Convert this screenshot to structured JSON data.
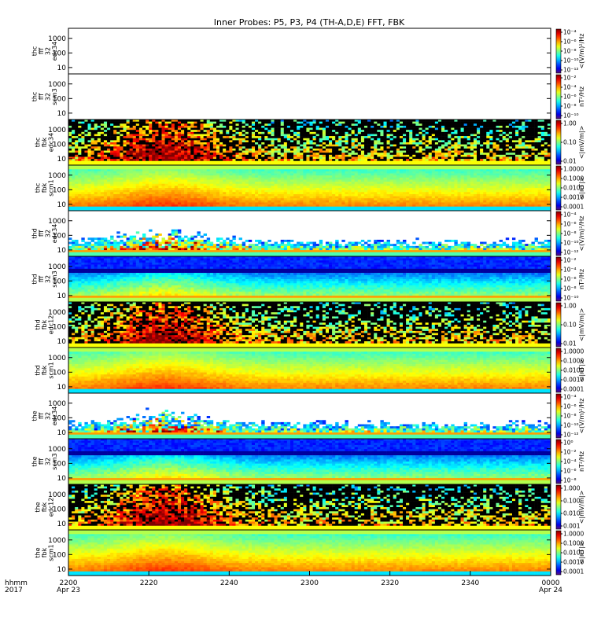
{
  "title": "Inner Probes: P5, P3, P4 (TH-A,D,E) FFT, FBK",
  "x_axis": {
    "corner_labels": [
      "hhmm",
      "2017"
    ],
    "ticks": [
      {
        "time": "2200",
        "date": "Apr 23"
      },
      {
        "time": "2220",
        "date": ""
      },
      {
        "time": "2240",
        "date": ""
      },
      {
        "time": "2300",
        "date": ""
      },
      {
        "time": "2320",
        "date": ""
      },
      {
        "time": "2340",
        "date": ""
      },
      {
        "time": "0000",
        "date": "Apr 24"
      }
    ]
  },
  "chart_data": {
    "type": "heatmap",
    "x_range": [
      "2017-04-23 22:00",
      "2017-04-24 00:00"
    ],
    "y_scale": "log",
    "y_ticks": [
      "1000",
      "100",
      "10"
    ],
    "panels": [
      {
        "label": [
          "thc",
          "fff",
          "32",
          "edc34"
        ],
        "colorbar_unit": "<(V/m)²/Hz",
        "colorbar_ticks": [
          "10⁻⁴",
          "10⁻⁶",
          "10⁻⁸",
          "10⁻¹⁰",
          "10⁻¹²"
        ],
        "pattern": "blank"
      },
      {
        "label": [
          "thc",
          "fff",
          "32",
          "scm3"
        ],
        "colorbar_unit": "nT²/Hz",
        "colorbar_ticks": [
          "10⁻²",
          "10⁻⁴",
          "10⁻⁶",
          "10⁻⁸",
          "10⁻¹⁰"
        ],
        "pattern": "blank"
      },
      {
        "label": [
          "thc",
          "fbk",
          "edc34"
        ],
        "colorbar_unit": "<|mV/m|>",
        "colorbar_ticks": [
          "1.00",
          "0.10",
          "0.01"
        ],
        "pattern": "fbk_e"
      },
      {
        "label": [
          "thc",
          "fbk",
          "scm1"
        ],
        "colorbar_unit": "<|nT|>",
        "colorbar_ticks": [
          "1.0000",
          "0.1000",
          "0.0100",
          "0.0010",
          "0.0001"
        ],
        "pattern": "fbk_b"
      },
      {
        "label": [
          "thd",
          "fff",
          "32",
          "edc34"
        ],
        "colorbar_unit": "<(V/m)²/Hz",
        "colorbar_ticks": [
          "10⁻⁴",
          "10⁻⁶",
          "10⁻⁸",
          "10⁻¹⁰",
          "10⁻¹²"
        ],
        "pattern": "fff_e"
      },
      {
        "label": [
          "thd",
          "fff",
          "32",
          "scm3"
        ],
        "colorbar_unit": "nT²/Hz",
        "colorbar_ticks": [
          "10⁻²",
          "10⁻⁴",
          "10⁻⁶",
          "10⁻⁸",
          "10⁻¹⁰"
        ],
        "pattern": "fff_b"
      },
      {
        "label": [
          "thd",
          "fbk",
          "edc12"
        ],
        "colorbar_unit": "<|mV/m|>",
        "colorbar_ticks": [
          "1.00",
          "0.10",
          "0.01"
        ],
        "pattern": "fbk_e"
      },
      {
        "label": [
          "thd",
          "fbk",
          "scm1"
        ],
        "colorbar_unit": "<|nT|>",
        "colorbar_ticks": [
          "1.0000",
          "0.1000",
          "0.0100",
          "0.0010",
          "0.0001"
        ],
        "pattern": "fbk_b"
      },
      {
        "label": [
          "the",
          "fff",
          "32",
          "edc34"
        ],
        "colorbar_unit": "<(V/m)²/Hz",
        "colorbar_ticks": [
          "10⁻⁴",
          "10⁻⁶",
          "10⁻⁸",
          "10⁻¹⁰",
          "10⁻¹²"
        ],
        "pattern": "fff_e"
      },
      {
        "label": [
          "the",
          "fff",
          "32",
          "scm3"
        ],
        "colorbar_unit": "nT²/Hz",
        "colorbar_ticks": [
          "10⁰",
          "10⁻²",
          "10⁻⁴",
          "10⁻⁶",
          "10⁻⁸"
        ],
        "pattern": "fff_b"
      },
      {
        "label": [
          "the",
          "fbk",
          "edc12"
        ],
        "colorbar_unit": "<|mV/m|>",
        "colorbar_ticks": [
          "1.000",
          "0.100",
          "0.010",
          "0.001"
        ],
        "pattern": "fbk_e"
      },
      {
        "label": [
          "the",
          "fbk",
          "scm1"
        ],
        "colorbar_unit": "<|nT|>",
        "colorbar_ticks": [
          "1.0000",
          "0.1000",
          "0.0100",
          "0.0010",
          "0.0001"
        ],
        "pattern": "fbk_b"
      }
    ]
  }
}
